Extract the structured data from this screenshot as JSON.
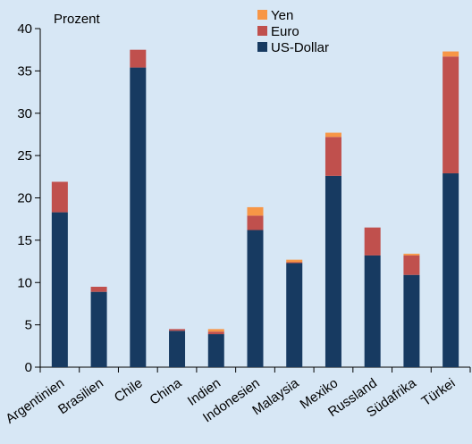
{
  "chart_data": {
    "type": "bar",
    "stacked": true,
    "title": "",
    "ylabel": "Prozent",
    "xlabel": "",
    "ylim": [
      0,
      40
    ],
    "yticks": [
      0,
      5,
      10,
      15,
      20,
      25,
      30,
      35,
      40
    ],
    "grid": false,
    "legend_position": "top-center",
    "categories": [
      "Argentinien",
      "Brasilien",
      "Chile",
      "China",
      "Indien",
      "Indonesien",
      "Malaysia",
      "Mexiko",
      "Russland",
      "Südafrika",
      "Türkei"
    ],
    "series": [
      {
        "name": "US-Dollar",
        "color": "#173a61",
        "values": [
          18.3,
          8.9,
          35.4,
          4.3,
          3.9,
          16.2,
          12.3,
          22.6,
          13.2,
          10.9,
          22.9
        ]
      },
      {
        "name": "Euro",
        "color": "#c0504d",
        "values": [
          3.6,
          0.6,
          2.1,
          0.2,
          0.3,
          1.7,
          0.1,
          4.6,
          3.3,
          2.3,
          13.8
        ]
      },
      {
        "name": "Yen",
        "color": "#f79646",
        "values": [
          0.0,
          0.0,
          0.0,
          0.0,
          0.3,
          1.0,
          0.3,
          0.5,
          0.0,
          0.2,
          0.6
        ]
      }
    ],
    "legend_order": [
      "Yen",
      "Euro",
      "US-Dollar"
    ]
  }
}
